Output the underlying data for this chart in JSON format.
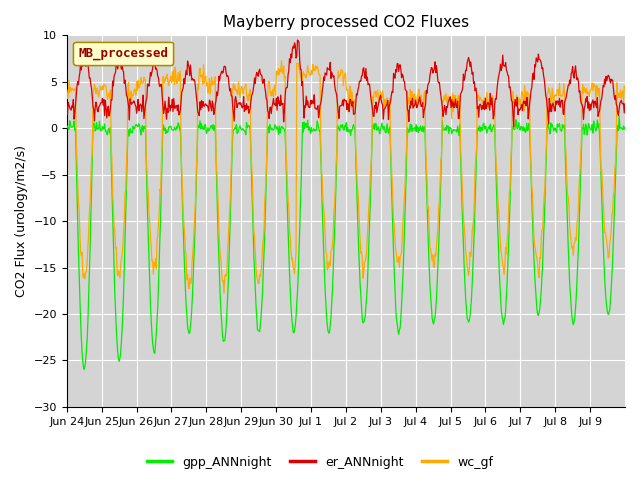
{
  "title": "Mayberry processed CO2 Fluxes",
  "ylabel": "CO2 Flux (urology/m2/s)",
  "ylim": [
    -30,
    10
  ],
  "yticks": [
    -30,
    -25,
    -20,
    -15,
    -10,
    -5,
    0,
    5,
    10
  ],
  "n_days": 16,
  "xtick_labels": [
    "Jun 24",
    "Jun 25",
    "Jun 26",
    "Jun 27",
    "Jun 28",
    "Jun 29",
    "Jun 30",
    "Jul 1",
    "Jul 2",
    "Jul 3",
    "Jul 4",
    "Jul 5",
    "Jul 6",
    "Jul 7",
    "Jul 8",
    "Jul 9"
  ],
  "bg_color": "#d4d4d4",
  "fig_bg_color": "#ffffff",
  "line_green": "#00ee00",
  "line_red": "#dd0000",
  "line_orange": "#ffaa00",
  "legend_label": "MB_processed",
  "legend_text_color": "#990000",
  "legend_box_facecolor": "#ffffcc",
  "legend_box_edgecolor": "#aa8800",
  "series_names": [
    "gpp_ANNnight",
    "er_ANNnight",
    "wc_gf"
  ],
  "title_fontsize": 11,
  "axis_fontsize": 9,
  "tick_fontsize": 8
}
